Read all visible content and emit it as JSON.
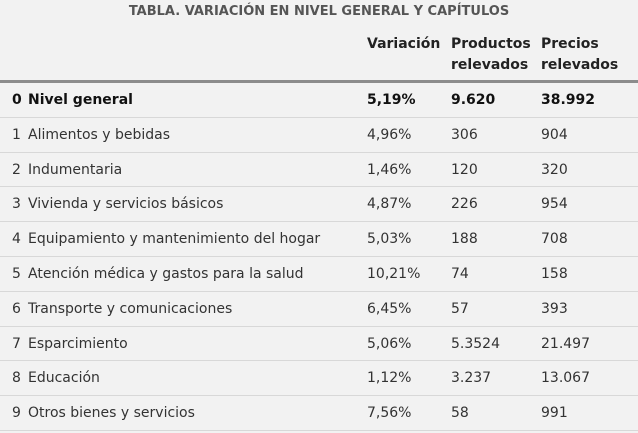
{
  "title": "TABLA. VARIACIÓN EN NIVEL GENERAL Y CAPÍTULOS",
  "columns": {
    "variacion": "Variación",
    "productos_line1": "Productos",
    "productos_line2": "relevados",
    "precios_line1": "Precios",
    "precios_line2": "relevados"
  },
  "rows": [
    {
      "idx": "0",
      "name": "Nivel general",
      "variacion": "5,19%",
      "productos": "9.620",
      "precios": "38.992"
    },
    {
      "idx": "1",
      "name": "Alimentos y bebidas",
      "variacion": "4,96%",
      "productos": "306",
      "precios": "904"
    },
    {
      "idx": "2",
      "name": "Indumentaria",
      "variacion": "1,46%",
      "productos": "120",
      "precios": "320"
    },
    {
      "idx": "3",
      "name": "Vivienda y servicios básicos",
      "variacion": "4,87%",
      "productos": "226",
      "precios": "954"
    },
    {
      "idx": "4",
      "name": "Equipamiento y mantenimiento del hogar",
      "variacion": "5,03%",
      "productos": "188",
      "precios": "708"
    },
    {
      "idx": "5",
      "name": "Atención médica y gastos para la salud",
      "variacion": "10,21%",
      "productos": "74",
      "precios": "158"
    },
    {
      "idx": "6",
      "name": "Transporte y comunicaciones",
      "variacion": "6,45%",
      "productos": "57",
      "precios": "393"
    },
    {
      "idx": "7",
      "name": "Esparcimiento",
      "variacion": "5,06%",
      "productos": "5.3524",
      "precios": "21.497"
    },
    {
      "idx": "8",
      "name": "Educación",
      "variacion": "1,12%",
      "productos": "3.237",
      "precios": "13.067"
    },
    {
      "idx": "9",
      "name": "Otros bienes y servicios",
      "variacion": "7,56%",
      "productos": "58",
      "precios": "991"
    }
  ]
}
